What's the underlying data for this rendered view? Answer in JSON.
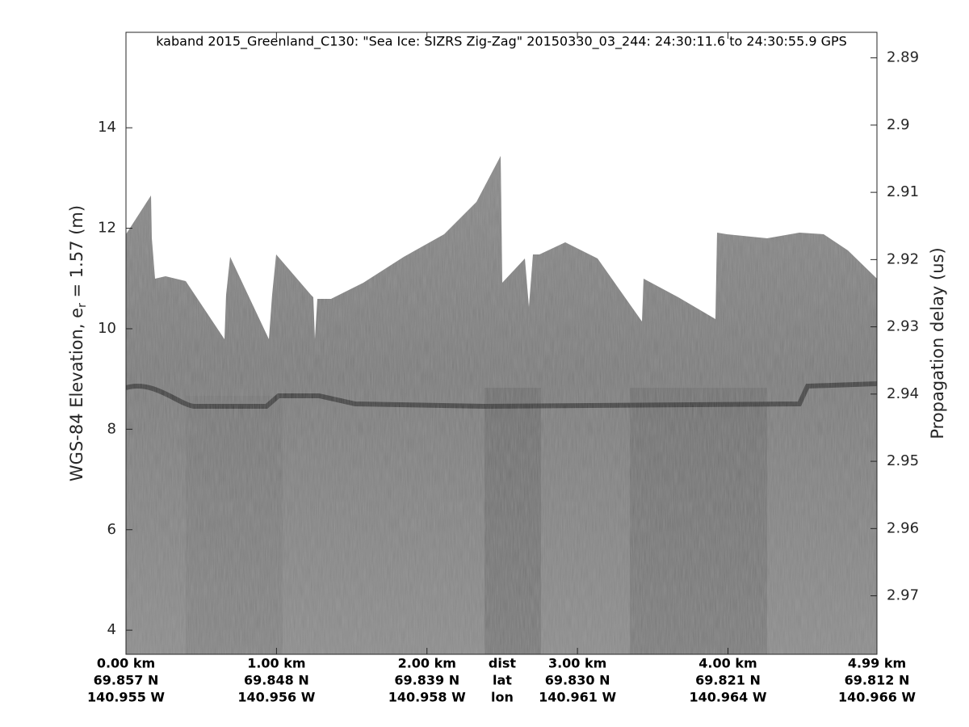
{
  "chart_data": {
    "type": "image",
    "title": "kaband 2015_Greenland_C130: \"Sea Ice: SIZRS Zig-Zag\"  20150330_03_244: 24:30:11.6 to 24:30:55.9 GPS",
    "ylabel": "WGS-84 Elevation, e",
    "ylabel_sub": "r",
    "ylabel_end": " = 1.57 (m)",
    "y2label": "Propagation delay (us)",
    "ylim": [
      3.52,
      15.9
    ],
    "yticks": [
      4,
      6,
      8,
      10,
      12,
      14
    ],
    "y2lim": [
      2.9787,
      2.8862
    ],
    "y2ticks": [
      2.89,
      2.9,
      2.91,
      2.92,
      2.93,
      2.94,
      2.95,
      2.96,
      2.97
    ],
    "xlim": [
      0,
      4.99
    ],
    "xticks": [
      {
        "value": 0,
        "label": "0.00 km"
      },
      {
        "value": 1,
        "label": "1.00 km"
      },
      {
        "value": 2,
        "label": "2.00 km"
      },
      {
        "value": 3,
        "label": "3.00 km"
      },
      {
        "value": 4,
        "label": "4.00 km"
      },
      {
        "value": 4.99,
        "label": "4.99 km"
      }
    ],
    "xtick_lat": [
      "69.857 N",
      "69.848 N",
      "69.839 N",
      "69.830 N",
      "69.821 N",
      "69.812 N"
    ],
    "xtick_lon": [
      "140.955 W",
      "140.956 W",
      "140.958 W",
      "140.961 W",
      "140.964 W",
      "140.966 W"
    ],
    "xaxis_headers": [
      "dist",
      "lat",
      "lon"
    ]
  }
}
